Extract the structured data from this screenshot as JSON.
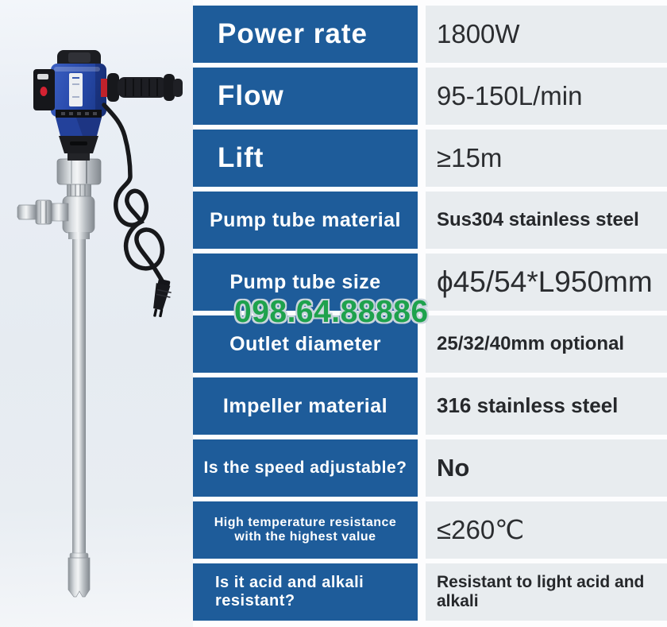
{
  "colors": {
    "label_bg": "#1e5c9a",
    "value_bg": "#e8ecef",
    "watermark": "#1ea24d"
  },
  "watermark": {
    "text": "098.64.88886"
  },
  "photo": {
    "name": "electric-drum-pump"
  },
  "table": {
    "rows": [
      {
        "label": "Power rate",
        "value": "1800W"
      },
      {
        "label": "Flow",
        "value": "95-150L/min"
      },
      {
        "label": "Lift",
        "value": "≥15m"
      },
      {
        "label": "Pump tube material",
        "value": "Sus304 stainless steel"
      },
      {
        "label": "Pump tube size",
        "value": "ϕ45/54*L950mm"
      },
      {
        "label": "Outlet diameter",
        "value": "25/32/40mm optional"
      },
      {
        "label": "Impeller material",
        "value": "316 stainless steel"
      },
      {
        "label": "Is the speed adjustable?",
        "value": "No"
      },
      {
        "label": "High temperature resistance with the highest value",
        "value": "≤260℃"
      },
      {
        "label": "Is it acid and alkali resistant?",
        "value": "Resistant to light acid and alkali"
      }
    ]
  }
}
